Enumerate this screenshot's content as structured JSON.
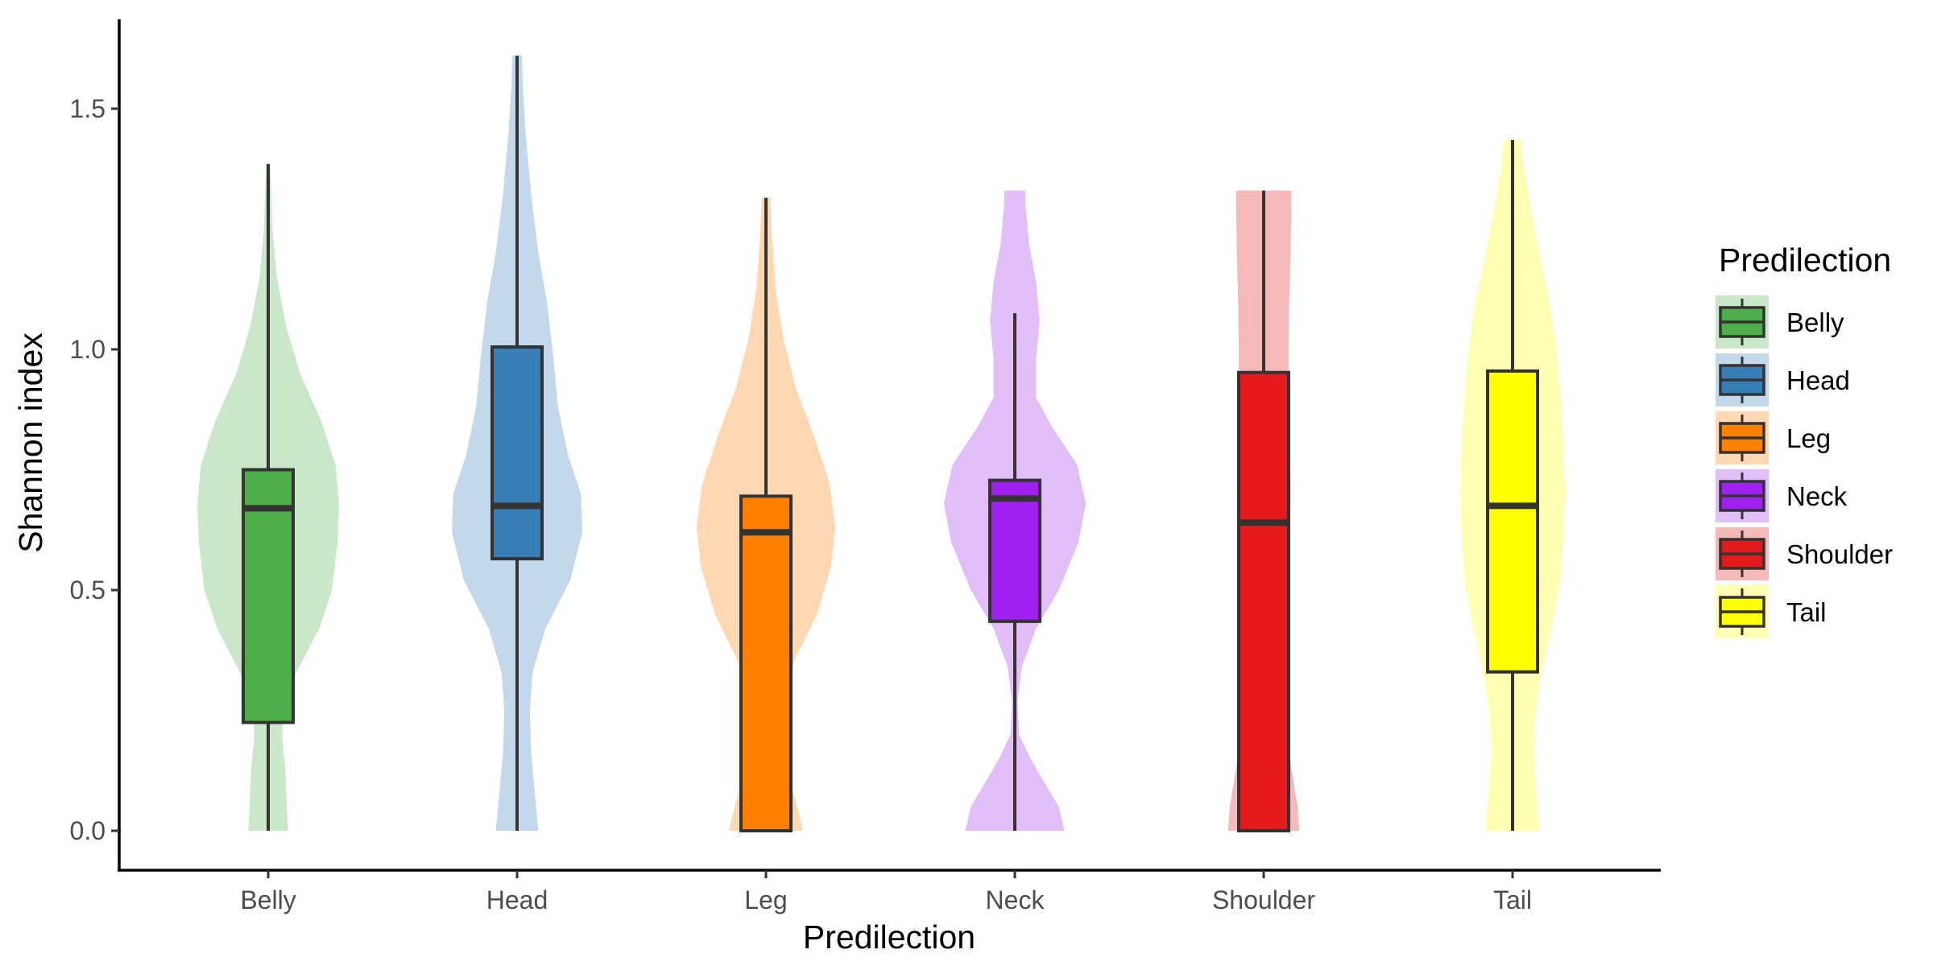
{
  "chart_data": {
    "type": "violin-box",
    "xlabel": "Predilection",
    "ylabel": "Shannon index",
    "ylim": [
      -0.08,
      1.65
    ],
    "y_ticks": [
      "0.0",
      "0.5",
      "1.0",
      "1.5"
    ],
    "y_tick_values": [
      0,
      0.5,
      1.0,
      1.5
    ],
    "grid": false,
    "legend": {
      "title": "Predilection",
      "position": "right"
    },
    "categories": [
      "Belly",
      "Head",
      "Leg",
      "Neck",
      "Shoulder",
      "Tail"
    ],
    "series": [
      {
        "category": "Belly",
        "box_color": "#4DAF4A",
        "violin_color": "#CBE7CA",
        "box": {
          "whisker_low": 0.0,
          "q1": 0.225,
          "median": 0.67,
          "q3": 0.75,
          "whisker_high": 1.385
        },
        "violin_range": [
          0.0,
          1.385
        ],
        "density_profile": [
          [
            0.0,
            0.28
          ],
          [
            0.06,
            0.26
          ],
          [
            0.13,
            0.24
          ],
          [
            0.19,
            0.2
          ],
          [
            0.25,
            0.2
          ],
          [
            0.33,
            0.4
          ],
          [
            0.42,
            0.72
          ],
          [
            0.5,
            0.9
          ],
          [
            0.6,
            0.98
          ],
          [
            0.68,
            1.0
          ],
          [
            0.76,
            0.95
          ],
          [
            0.85,
            0.75
          ],
          [
            0.95,
            0.45
          ],
          [
            1.05,
            0.25
          ],
          [
            1.15,
            0.12
          ],
          [
            1.25,
            0.06
          ],
          [
            1.385,
            0.03
          ]
        ]
      },
      {
        "category": "Head",
        "box_color": "#377EB8",
        "violin_color": "#C3D8EA",
        "box": {
          "whisker_low": 0.0,
          "q1": 0.565,
          "median": 0.675,
          "q3": 1.005,
          "whisker_high": 1.61
        },
        "violin_range": [
          0.0,
          1.61
        ],
        "density_profile": [
          [
            0.0,
            0.3
          ],
          [
            0.08,
            0.25
          ],
          [
            0.16,
            0.2
          ],
          [
            0.25,
            0.18
          ],
          [
            0.33,
            0.22
          ],
          [
            0.42,
            0.4
          ],
          [
            0.52,
            0.75
          ],
          [
            0.62,
            0.92
          ],
          [
            0.7,
            0.9
          ],
          [
            0.78,
            0.72
          ],
          [
            0.88,
            0.58
          ],
          [
            1.0,
            0.5
          ],
          [
            1.1,
            0.42
          ],
          [
            1.2,
            0.3
          ],
          [
            1.32,
            0.2
          ],
          [
            1.45,
            0.12
          ],
          [
            1.55,
            0.08
          ],
          [
            1.61,
            0.07
          ]
        ]
      },
      {
        "category": "Leg",
        "box_color": "#FF7F00",
        "violin_color": "#FFD8B3",
        "box": {
          "whisker_low": 0.0,
          "q1": 0.0,
          "median": 0.62,
          "q3": 0.695,
          "whisker_high": 1.315
        },
        "violin_range": [
          0.0,
          1.315
        ],
        "density_profile": [
          [
            0.0,
            0.52
          ],
          [
            0.05,
            0.44
          ],
          [
            0.12,
            0.3
          ],
          [
            0.2,
            0.2
          ],
          [
            0.28,
            0.22
          ],
          [
            0.36,
            0.42
          ],
          [
            0.45,
            0.72
          ],
          [
            0.55,
            0.92
          ],
          [
            0.63,
            0.98
          ],
          [
            0.72,
            0.9
          ],
          [
            0.82,
            0.68
          ],
          [
            0.92,
            0.42
          ],
          [
            1.02,
            0.25
          ],
          [
            1.12,
            0.14
          ],
          [
            1.22,
            0.09
          ],
          [
            1.315,
            0.06
          ]
        ]
      },
      {
        "category": "Neck",
        "box_color": "#A020F0",
        "violin_color": "#E2BEF9",
        "box": {
          "whisker_low": 0.0,
          "q1": 0.435,
          "median": 0.69,
          "q3": 0.728,
          "whisker_high": 1.075
        },
        "violin_range": [
          0.0,
          1.33
        ],
        "density_profile": [
          [
            0.0,
            0.7
          ],
          [
            0.05,
            0.62
          ],
          [
            0.1,
            0.42
          ],
          [
            0.15,
            0.22
          ],
          [
            0.2,
            0.06
          ],
          [
            0.27,
            0.04
          ],
          [
            0.34,
            0.1
          ],
          [
            0.42,
            0.3
          ],
          [
            0.5,
            0.62
          ],
          [
            0.6,
            0.9
          ],
          [
            0.68,
            1.0
          ],
          [
            0.76,
            0.88
          ],
          [
            0.84,
            0.52
          ],
          [
            0.9,
            0.3
          ],
          [
            0.98,
            0.3
          ],
          [
            1.06,
            0.35
          ],
          [
            1.14,
            0.3
          ],
          [
            1.22,
            0.2
          ],
          [
            1.3,
            0.15
          ],
          [
            1.33,
            0.15
          ]
        ]
      },
      {
        "category": "Shoulder",
        "box_color": "#E41A1C",
        "violin_color": "#F5B9BA",
        "box": {
          "whisker_low": 0.0,
          "q1": 0.0,
          "median": 0.64,
          "q3": 0.952,
          "whisker_high": 1.33
        },
        "violin_range": [
          0.0,
          1.33
        ],
        "density_profile": [
          [
            0.0,
            0.5
          ],
          [
            0.05,
            0.48
          ],
          [
            0.12,
            0.4
          ],
          [
            0.2,
            0.33
          ],
          [
            0.3,
            0.31
          ],
          [
            0.4,
            0.33
          ],
          [
            0.5,
            0.35
          ],
          [
            0.6,
            0.37
          ],
          [
            0.7,
            0.38
          ],
          [
            0.8,
            0.37
          ],
          [
            0.9,
            0.35
          ],
          [
            1.0,
            0.35
          ],
          [
            1.1,
            0.36
          ],
          [
            1.2,
            0.38
          ],
          [
            1.3,
            0.39
          ],
          [
            1.33,
            0.39
          ]
        ]
      },
      {
        "category": "Tail",
        "box_color": "#FFFF00",
        "violin_color": "#FFFFB3",
        "box": {
          "whisker_low": 0.0,
          "q1": 0.33,
          "median": 0.675,
          "q3": 0.955,
          "whisker_high": 1.435
        },
        "violin_range": [
          0.0,
          1.435
        ],
        "density_profile": [
          [
            0.0,
            0.38
          ],
          [
            0.08,
            0.34
          ],
          [
            0.16,
            0.3
          ],
          [
            0.24,
            0.32
          ],
          [
            0.32,
            0.4
          ],
          [
            0.42,
            0.55
          ],
          [
            0.52,
            0.68
          ],
          [
            0.62,
            0.72
          ],
          [
            0.7,
            0.74
          ],
          [
            0.8,
            0.72
          ],
          [
            0.9,
            0.68
          ],
          [
            1.0,
            0.62
          ],
          [
            1.1,
            0.52
          ],
          [
            1.2,
            0.38
          ],
          [
            1.3,
            0.25
          ],
          [
            1.38,
            0.16
          ],
          [
            1.435,
            0.12
          ]
        ]
      }
    ]
  }
}
